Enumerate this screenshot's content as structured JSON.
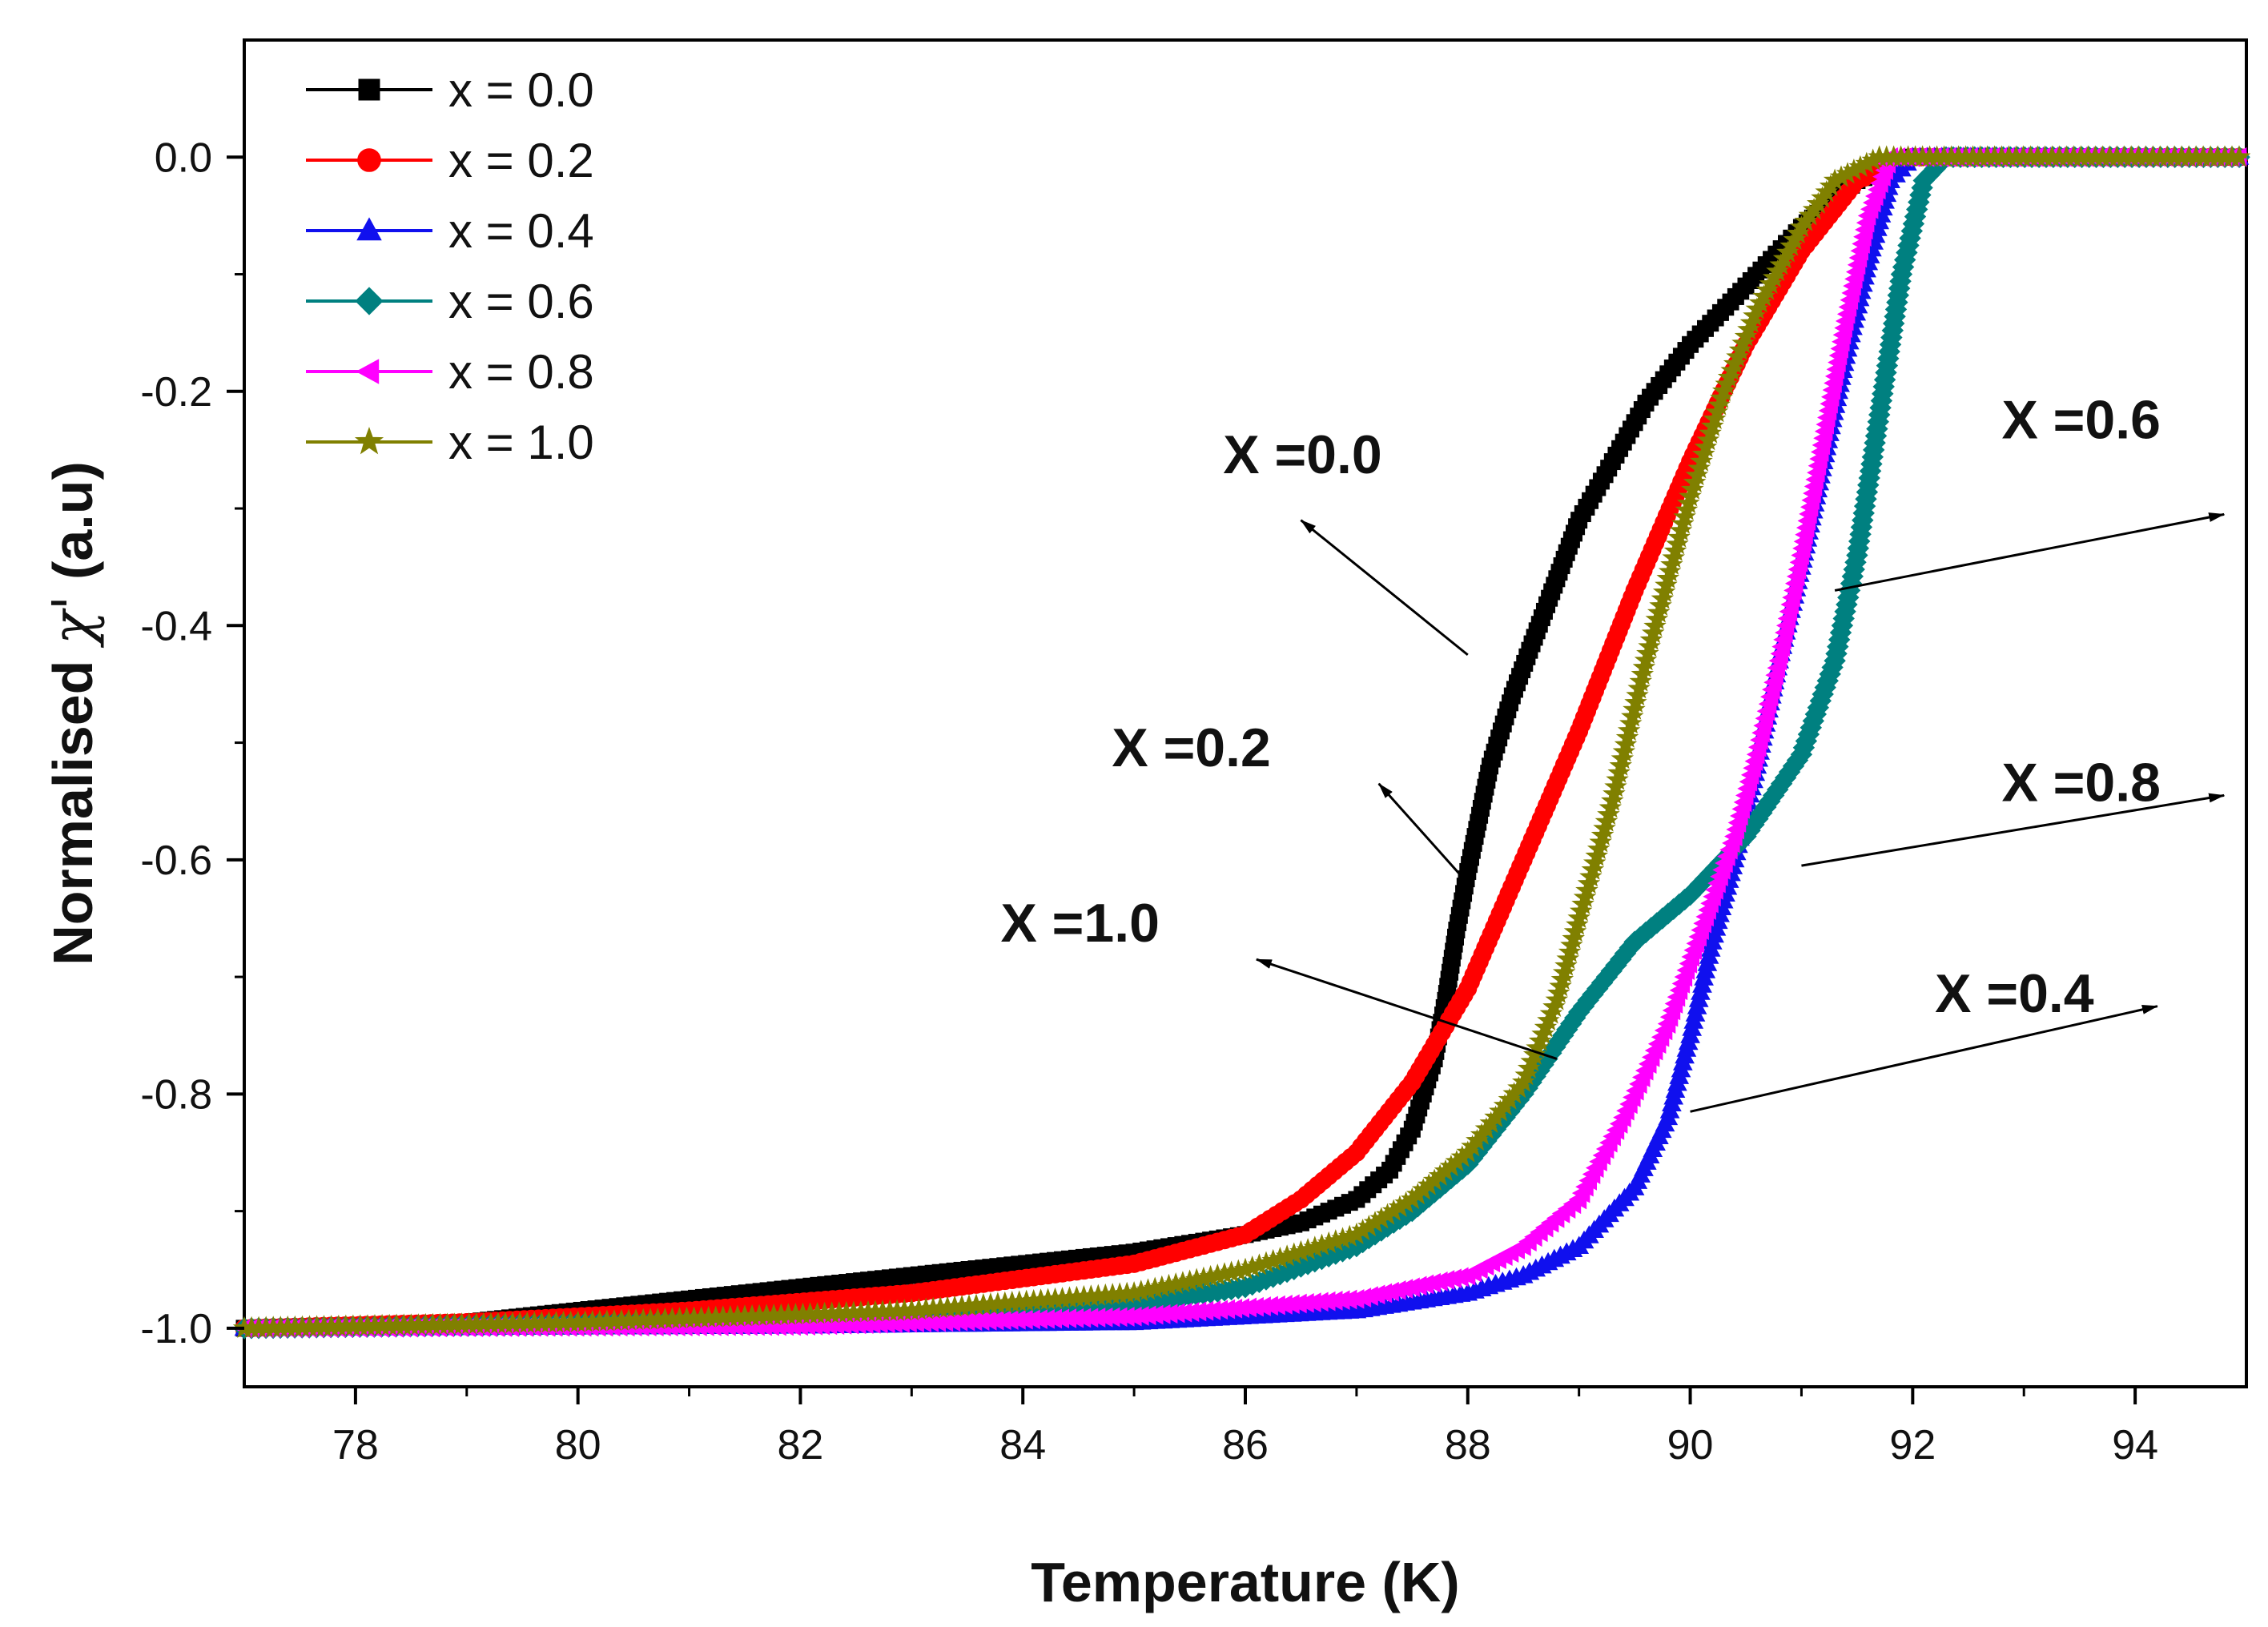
{
  "chart_data": {
    "type": "scatter",
    "title": "",
    "xlabel": "Temperature (K)",
    "ylabel_prefix": "Normalised ",
    "ylabel_symbol": "χ'",
    "ylabel_suffix": " (a.u)",
    "xlim": [
      77,
      95
    ],
    "ylim": [
      -1.05,
      0.1
    ],
    "x_ticks": [
      78,
      80,
      82,
      84,
      86,
      88,
      90,
      92,
      94
    ],
    "x_tick_labels": [
      "78",
      "80",
      "82",
      "84",
      "86",
      "88",
      "90",
      "92",
      "94"
    ],
    "y_ticks": [
      0.0,
      -0.2,
      -0.4,
      -0.6,
      -0.8,
      -1.0
    ],
    "y_tick_labels": [
      "0.0",
      "-0.2",
      "-0.4",
      "-0.6",
      "-0.8",
      "-1.0"
    ],
    "grid": false,
    "legend_position": "top-left",
    "series": [
      {
        "name": "x = 0.0",
        "color": "#000000",
        "marker": "square",
        "points": [
          [
            77,
            -1.0
          ],
          [
            79,
            -0.995
          ],
          [
            81,
            -0.975
          ],
          [
            83,
            -0.955
          ],
          [
            85,
            -0.935
          ],
          [
            86,
            -0.92
          ],
          [
            86.5,
            -0.91
          ],
          [
            87,
            -0.89
          ],
          [
            87.3,
            -0.865
          ],
          [
            87.5,
            -0.83
          ],
          [
            87.7,
            -0.77
          ],
          [
            87.8,
            -0.72
          ],
          [
            87.9,
            -0.66
          ],
          [
            88.0,
            -0.61
          ],
          [
            88.2,
            -0.52
          ],
          [
            88.4,
            -0.46
          ],
          [
            88.6,
            -0.41
          ],
          [
            88.8,
            -0.36
          ],
          [
            89.0,
            -0.31
          ],
          [
            89.3,
            -0.26
          ],
          [
            89.6,
            -0.21
          ],
          [
            90.0,
            -0.16
          ],
          [
            90.5,
            -0.11
          ],
          [
            91.0,
            -0.06
          ],
          [
            91.5,
            -0.02
          ],
          [
            92,
            0.0
          ],
          [
            95,
            0.0
          ]
        ]
      },
      {
        "name": "x = 0.2",
        "color": "#ff0000",
        "marker": "circle",
        "points": [
          [
            77,
            -1.0
          ],
          [
            79,
            -0.995
          ],
          [
            81,
            -0.985
          ],
          [
            83,
            -0.97
          ],
          [
            85,
            -0.945
          ],
          [
            86,
            -0.92
          ],
          [
            86.5,
            -0.89
          ],
          [
            87,
            -0.85
          ],
          [
            87.5,
            -0.79
          ],
          [
            88,
            -0.71
          ],
          [
            88.5,
            -0.6
          ],
          [
            89,
            -0.49
          ],
          [
            89.5,
            -0.37
          ],
          [
            90,
            -0.26
          ],
          [
            90.5,
            -0.16
          ],
          [
            91,
            -0.08
          ],
          [
            91.5,
            -0.02
          ],
          [
            92,
            0.0
          ],
          [
            95,
            0.0
          ]
        ]
      },
      {
        "name": "x = 0.4",
        "color": "#1010ee",
        "marker": "triangle-up",
        "points": [
          [
            77,
            -1.0
          ],
          [
            82,
            -0.998
          ],
          [
            85,
            -0.995
          ],
          [
            87,
            -0.985
          ],
          [
            88,
            -0.97
          ],
          [
            88.5,
            -0.955
          ],
          [
            89,
            -0.93
          ],
          [
            89.5,
            -0.88
          ],
          [
            89.8,
            -0.82
          ],
          [
            90,
            -0.75
          ],
          [
            90.2,
            -0.67
          ],
          [
            90.4,
            -0.6
          ],
          [
            90.6,
            -0.52
          ],
          [
            90.8,
            -0.43
          ],
          [
            91,
            -0.35
          ],
          [
            91.2,
            -0.26
          ],
          [
            91.4,
            -0.17
          ],
          [
            91.6,
            -0.09
          ],
          [
            91.8,
            -0.02
          ],
          [
            92,
            0.0
          ],
          [
            95,
            0.0
          ]
        ]
      },
      {
        "name": "x = 0.6",
        "color": "#008080",
        "marker": "diamond",
        "points": [
          [
            77,
            -1.0
          ],
          [
            82,
            -0.995
          ],
          [
            85,
            -0.98
          ],
          [
            86,
            -0.965
          ],
          [
            87,
            -0.93
          ],
          [
            87.5,
            -0.9
          ],
          [
            88,
            -0.86
          ],
          [
            88.5,
            -0.8
          ],
          [
            89,
            -0.73
          ],
          [
            89.5,
            -0.67
          ],
          [
            90,
            -0.63
          ],
          [
            90.5,
            -0.58
          ],
          [
            91,
            -0.51
          ],
          [
            91.3,
            -0.43
          ],
          [
            91.5,
            -0.34
          ],
          [
            91.7,
            -0.22
          ],
          [
            91.9,
            -0.1
          ],
          [
            92.1,
            -0.02
          ],
          [
            92.3,
            0.0
          ],
          [
            95,
            0.0
          ]
        ]
      },
      {
        "name": "x = 0.8",
        "color": "#ff00ff",
        "marker": "triangle-left",
        "points": [
          [
            77,
            -1.0
          ],
          [
            82,
            -0.998
          ],
          [
            85,
            -0.99
          ],
          [
            87,
            -0.975
          ],
          [
            88,
            -0.955
          ],
          [
            88.5,
            -0.93
          ],
          [
            89,
            -0.89
          ],
          [
            89.4,
            -0.82
          ],
          [
            89.8,
            -0.74
          ],
          [
            90.1,
            -0.66
          ],
          [
            90.4,
            -0.58
          ],
          [
            90.6,
            -0.51
          ],
          [
            90.8,
            -0.43
          ],
          [
            91,
            -0.34
          ],
          [
            91.2,
            -0.24
          ],
          [
            91.4,
            -0.14
          ],
          [
            91.6,
            -0.05
          ],
          [
            91.8,
            0.0
          ],
          [
            95,
            0.0
          ]
        ]
      },
      {
        "name": "x = 1.0",
        "color": "#808000",
        "marker": "star",
        "points": [
          [
            77,
            -1.0
          ],
          [
            80,
            -0.995
          ],
          [
            83,
            -0.985
          ],
          [
            85,
            -0.97
          ],
          [
            86,
            -0.95
          ],
          [
            87,
            -0.92
          ],
          [
            87.5,
            -0.89
          ],
          [
            88,
            -0.85
          ],
          [
            88.5,
            -0.79
          ],
          [
            88.8,
            -0.72
          ],
          [
            89,
            -0.65
          ],
          [
            89.3,
            -0.55
          ],
          [
            89.6,
            -0.43
          ],
          [
            90,
            -0.29
          ],
          [
            90.3,
            -0.2
          ],
          [
            90.6,
            -0.13
          ],
          [
            91,
            -0.06
          ],
          [
            91.3,
            -0.02
          ],
          [
            91.7,
            0.0
          ],
          [
            95,
            0.0
          ]
        ]
      }
    ],
    "annotations": [
      {
        "label": "X =0.0",
        "text_at": [
          85.8,
          -0.27
        ],
        "arrow_from": [
          88.0,
          -0.425
        ],
        "arrow_to": [
          86.5,
          -0.31
        ]
      },
      {
        "label": "X =0.2",
        "text_at": [
          84.8,
          -0.52
        ],
        "arrow_from": [
          88.0,
          -0.62
        ],
        "arrow_to": [
          87.2,
          -0.535
        ]
      },
      {
        "label": "X =1.0",
        "text_at": [
          83.8,
          -0.67
        ],
        "arrow_from": [
          88.8,
          -0.77
        ],
        "arrow_to": [
          86.1,
          -0.685
        ]
      },
      {
        "label": "X =0.6",
        "text_at": [
          92.8,
          -0.24
        ],
        "arrow_from": [
          91.3,
          -0.37
        ],
        "arrow_to": [
          94.8,
          -0.305
        ]
      },
      {
        "label": "X =0.8",
        "text_at": [
          92.8,
          -0.55
        ],
        "arrow_from": [
          91.0,
          -0.605
        ],
        "arrow_to": [
          94.8,
          -0.545
        ]
      },
      {
        "label": "X =0.4",
        "text_at": [
          92.2,
          -0.73
        ],
        "arrow_from": [
          90.0,
          -0.815
        ],
        "arrow_to": [
          94.2,
          -0.725
        ]
      }
    ]
  }
}
